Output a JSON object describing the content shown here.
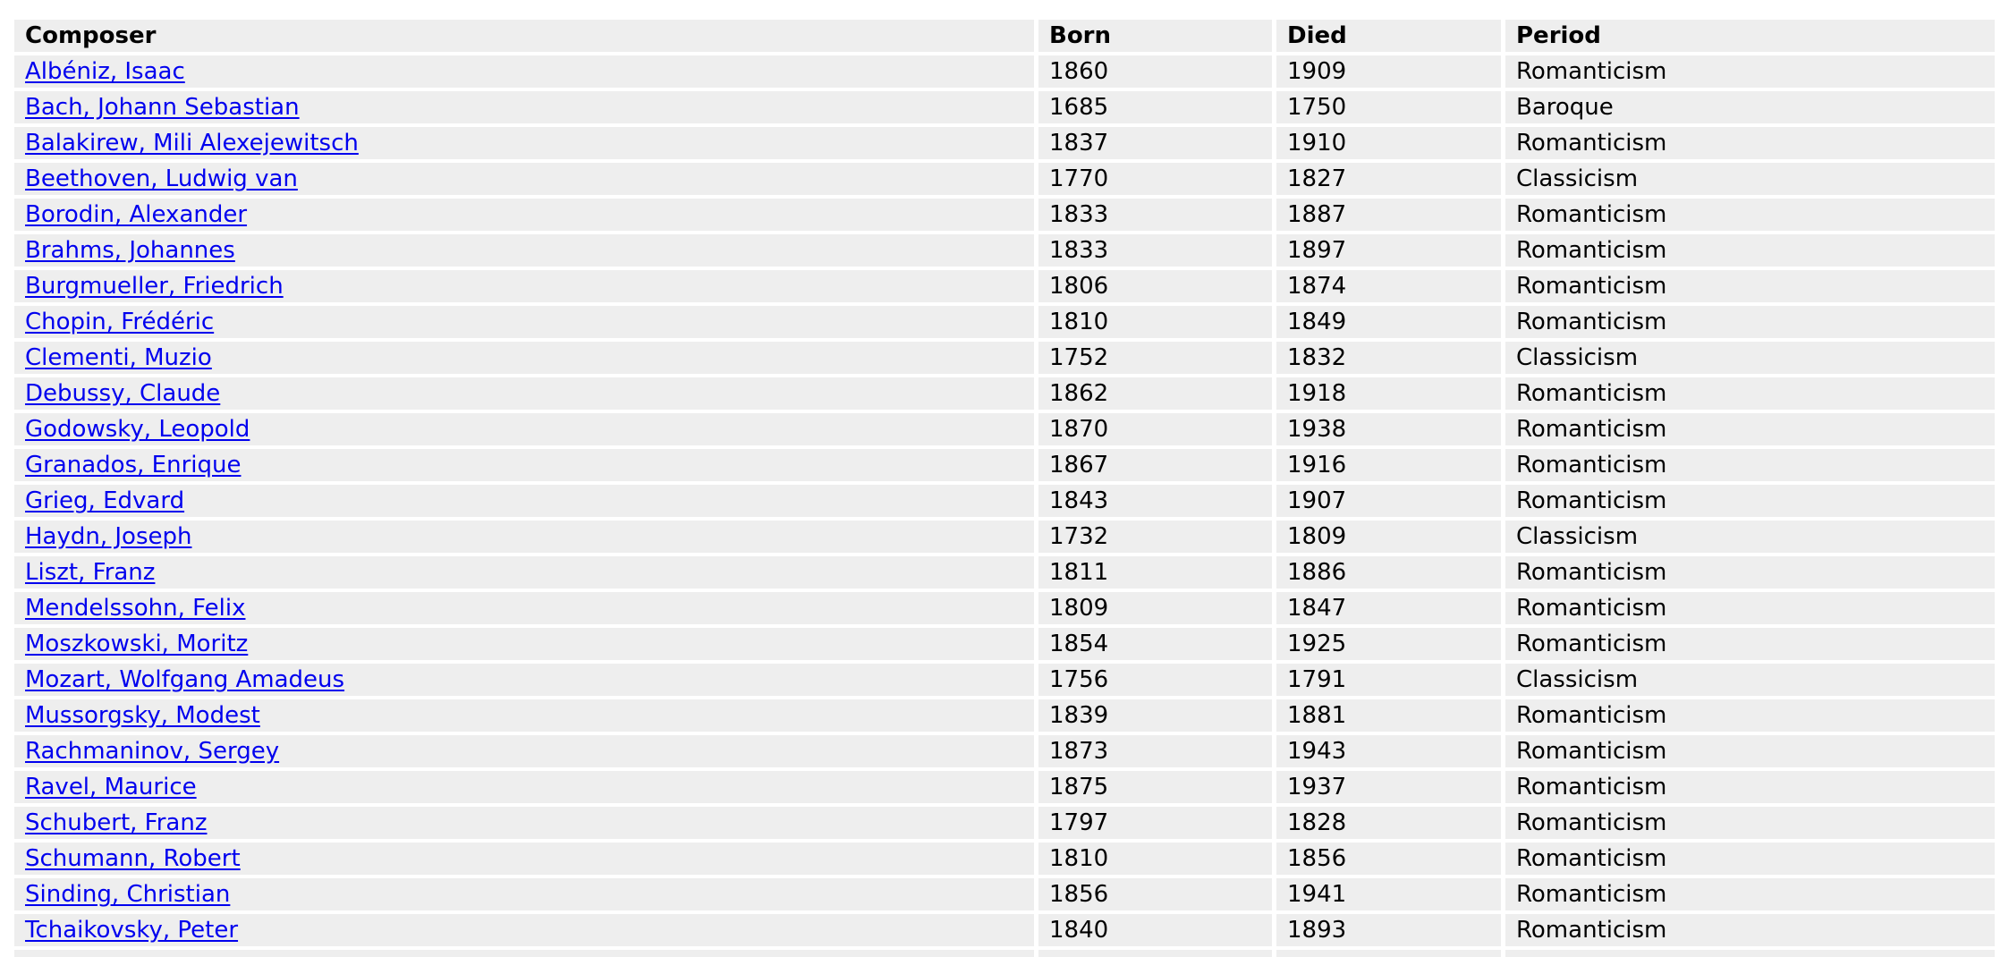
{
  "table": {
    "headers": [
      "Composer",
      "Born",
      "Died",
      "Period"
    ],
    "rows": [
      {
        "composer": "Albéniz, Isaac",
        "born": "1860",
        "died": "1909",
        "period": "Romanticism"
      },
      {
        "composer": "Bach, Johann Sebastian",
        "born": "1685",
        "died": "1750",
        "period": "Baroque"
      },
      {
        "composer": "Balakirew, Mili Alexejewitsch",
        "born": "1837",
        "died": "1910",
        "period": "Romanticism"
      },
      {
        "composer": "Beethoven, Ludwig van",
        "born": "1770",
        "died": "1827",
        "period": "Classicism"
      },
      {
        "composer": "Borodin, Alexander",
        "born": "1833",
        "died": "1887",
        "period": "Romanticism"
      },
      {
        "composer": "Brahms, Johannes",
        "born": "1833",
        "died": "1897",
        "period": "Romanticism"
      },
      {
        "composer": "Burgmueller, Friedrich",
        "born": "1806",
        "died": "1874",
        "period": "Romanticism"
      },
      {
        "composer": "Chopin, Frédéric",
        "born": "1810",
        "died": "1849",
        "period": "Romanticism"
      },
      {
        "composer": "Clementi, Muzio",
        "born": "1752",
        "died": "1832",
        "period": "Classicism"
      },
      {
        "composer": "Debussy, Claude",
        "born": "1862",
        "died": "1918",
        "period": "Romanticism"
      },
      {
        "composer": "Godowsky, Leopold",
        "born": "1870",
        "died": "1938",
        "period": "Romanticism"
      },
      {
        "composer": "Granados, Enrique",
        "born": "1867",
        "died": "1916",
        "period": "Romanticism"
      },
      {
        "composer": "Grieg, Edvard",
        "born": "1843",
        "died": "1907",
        "period": "Romanticism"
      },
      {
        "composer": "Haydn, Joseph",
        "born": "1732",
        "died": "1809",
        "period": "Classicism"
      },
      {
        "composer": "Liszt, Franz",
        "born": "1811",
        "died": "1886",
        "period": "Romanticism"
      },
      {
        "composer": "Mendelssohn, Felix",
        "born": "1809",
        "died": "1847",
        "period": "Romanticism"
      },
      {
        "composer": "Moszkowski, Moritz",
        "born": "1854",
        "died": "1925",
        "period": "Romanticism"
      },
      {
        "composer": "Mozart, Wolfgang Amadeus",
        "born": "1756",
        "died": "1791",
        "period": "Classicism"
      },
      {
        "composer": "Mussorgsky, Modest",
        "born": "1839",
        "died": "1881",
        "period": "Romanticism"
      },
      {
        "composer": "Rachmaninov, Sergey",
        "born": "1873",
        "died": "1943",
        "period": "Romanticism"
      },
      {
        "composer": "Ravel, Maurice",
        "born": "1875",
        "died": "1937",
        "period": "Romanticism"
      },
      {
        "composer": "Schubert, Franz",
        "born": "1797",
        "died": "1828",
        "period": "Romanticism"
      },
      {
        "composer": "Schumann, Robert",
        "born": "1810",
        "died": "1856",
        "period": "Romanticism"
      },
      {
        "composer": "Sinding, Christian",
        "born": "1856",
        "died": "1941",
        "period": "Romanticism"
      },
      {
        "composer": "Tchaikovsky, Peter",
        "born": "1840",
        "died": "1893",
        "period": "Romanticism"
      }
    ]
  },
  "colors": {
    "cell_background": "#eeeeee",
    "link": "#0000ee",
    "text": "#000000"
  }
}
